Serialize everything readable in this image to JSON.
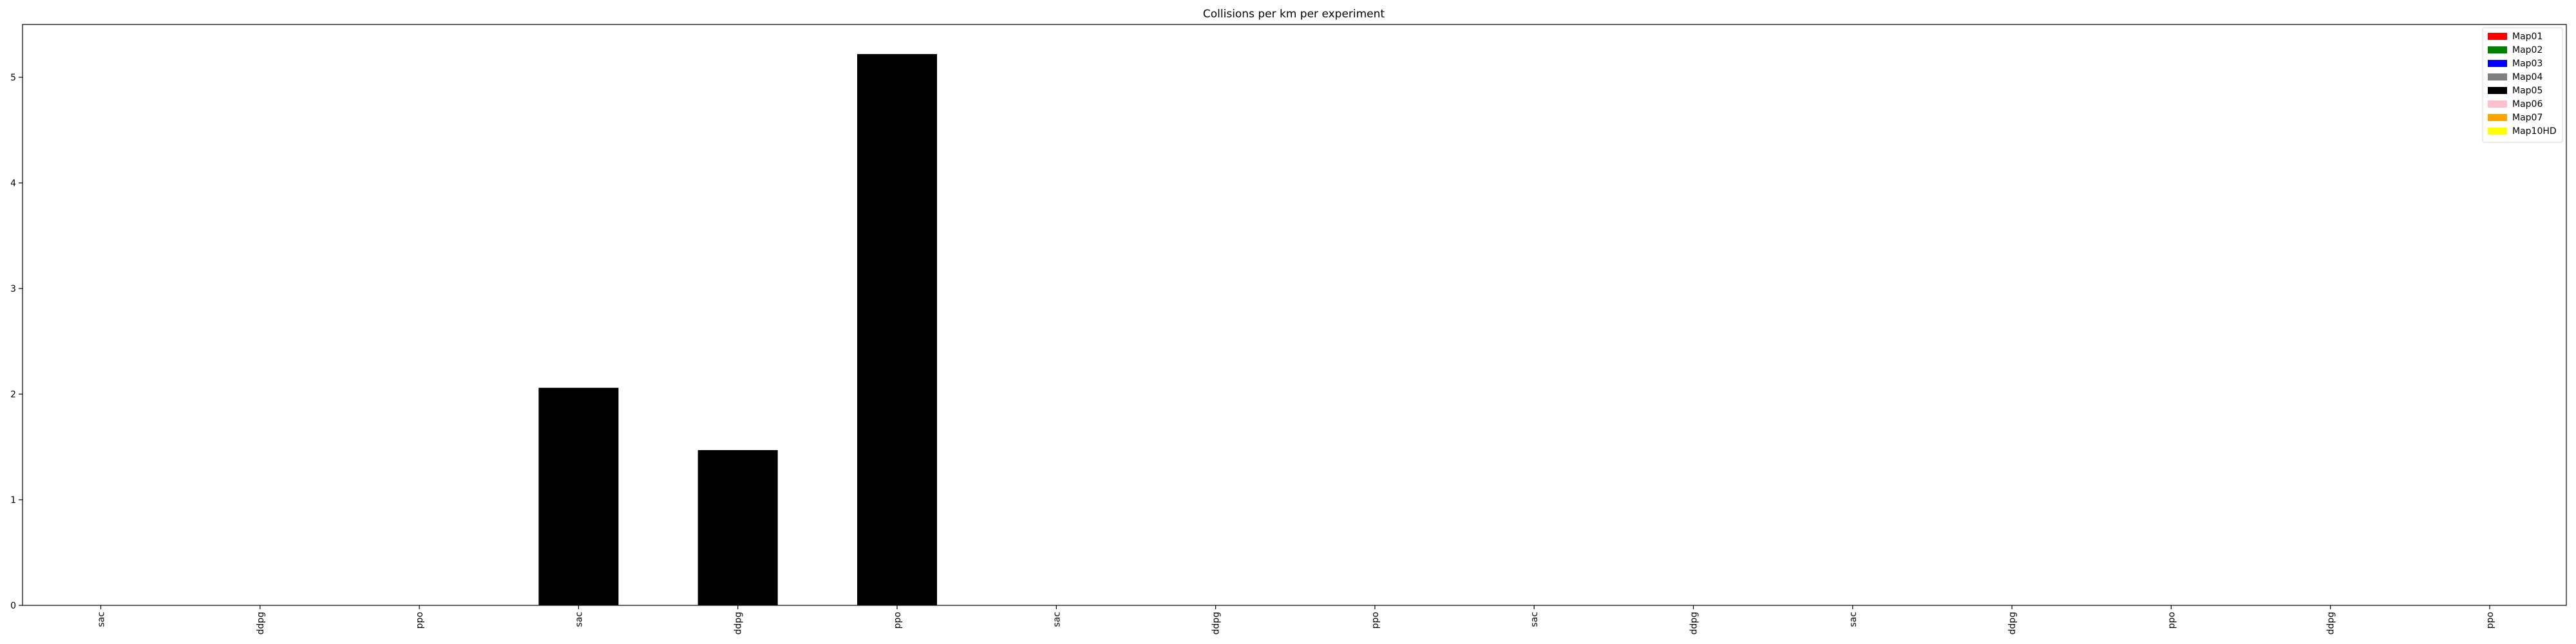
{
  "chart_data": {
    "type": "bar",
    "title": "Collisions per km per experiment",
    "xlabel": "",
    "ylabel": "",
    "ylim": [
      0,
      5.5
    ],
    "yticks": [
      0,
      1,
      2,
      3,
      4,
      5
    ],
    "grid": false,
    "legend_placement": "top-right",
    "categories": [
      "sac",
      "ddpg",
      "ppo",
      "sac",
      "ddpg",
      "ppo",
      "sac",
      "ddpg",
      "ppo",
      "sac",
      "ddpg",
      "sac",
      "ddpg",
      "ppo",
      "ddpg",
      "ppo"
    ],
    "values": [
      0,
      0,
      0,
      2.06,
      1.47,
      5.22,
      0,
      0,
      0,
      0,
      0,
      0,
      0,
      0,
      0,
      0
    ],
    "bar_colors": [
      "#000000",
      "#000000",
      "#000000",
      "#000000",
      "#000000",
      "#000000",
      "#000000",
      "#000000",
      "#000000",
      "#000000",
      "#000000",
      "#000000",
      "#000000",
      "#000000",
      "#000000",
      "#000000"
    ],
    "legend": [
      {
        "name": "Map01",
        "color": "#ff0000"
      },
      {
        "name": "Map02",
        "color": "#008000"
      },
      {
        "name": "Map03",
        "color": "#0000ff"
      },
      {
        "name": "Map04",
        "color": "#808080"
      },
      {
        "name": "Map05",
        "color": "#000000"
      },
      {
        "name": "Map06",
        "color": "#ffc0cb"
      },
      {
        "name": "Map07",
        "color": "#ffa500"
      },
      {
        "name": "Map10HD",
        "color": "#ffff00"
      }
    ]
  }
}
